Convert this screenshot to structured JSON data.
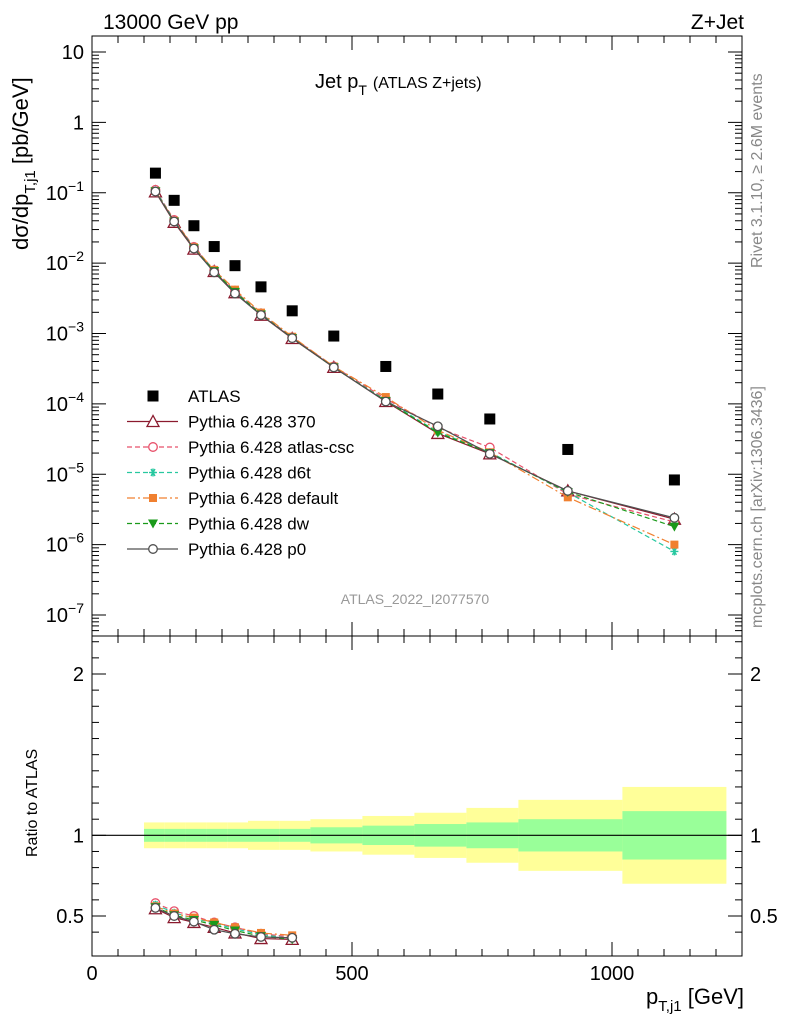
{
  "header": {
    "energy_label": "13000 GeV pp",
    "process_label": "Z+Jet",
    "plot_title_main": "Jet p",
    "plot_title_sub": "T",
    "plot_title_extra": "(ATLAS Z+jets)",
    "analysis_id": "ATLAS_2022_I2077570",
    "rivet_label": "Rivet 3.1.10, ≥ 2.6M events",
    "mcplots_label": "mcplots.cern.ch [arXiv:1306.3436]"
  },
  "axes": {
    "y_main": "dσ/dp",
    "y_main_sub": "T,j1",
    "y_main_unit": " [pb/GeV]",
    "y_ratio": "Ratio to ATLAS",
    "x_main": "p",
    "x_sub": "T,j1",
    "x_unit": " [GeV]"
  },
  "colors": {
    "ATLAS": "#000000",
    "370": "#8b1a2e",
    "atlas-csc": "#e8506a",
    "d6t": "#28c8a0",
    "default": "#f08030",
    "dw": "#1a9a1a",
    "p0": "#505050",
    "band_inner": "#99ff99",
    "band_outer": "#ffff99"
  },
  "chart_data": {
    "type": "line",
    "x_scale": "linear",
    "y_scale": "log",
    "xlim": [
      0,
      1250
    ],
    "ylim": [
      5e-08,
      20
    ],
    "ratio_ylim": [
      0.35,
      2.3
    ],
    "x_ticks": [
      "0",
      "500",
      "1000"
    ],
    "y_ticks": [
      "10^-7",
      "10^-6",
      "10^-5",
      "10^-4",
      "10^-3",
      "10^-2",
      "10^-1",
      "1",
      "10"
    ],
    "ratio_ticks": [
      "0.5",
      "1",
      "2"
    ],
    "legend_position": "middle-left",
    "x": [
      122,
      158,
      196,
      235,
      275,
      325,
      385,
      465,
      565,
      665,
      765,
      915,
      1120
    ],
    "bin_edges": [
      100,
      140,
      180,
      220,
      260,
      300,
      360,
      420,
      520,
      620,
      720,
      820,
      1020,
      1220
    ],
    "series": [
      {
        "name": "ATLAS",
        "marker": "square",
        "values": [
          0.19,
          0.078,
          0.034,
          0.0172,
          0.0092,
          0.0046,
          0.0021,
          0.00092,
          0.00034,
          0.000138,
          6.1e-05,
          2.25e-05,
          8.3e-06
        ]
      },
      {
        "name": "Pythia 6.428 370",
        "key": "370",
        "marker": "triangle",
        "dash": "",
        "values": [
          0.103,
          0.038,
          0.0158,
          0.0076,
          0.0038,
          0.00182,
          0.00085,
          0.00033,
          0.000108,
          3.8e-05,
          1.95e-05,
          5.8e-06,
          2.3e-06
        ]
      },
      {
        "name": "Pythia 6.428 atlas-csc",
        "key": "atlas-csc",
        "marker": "circle-open",
        "dash": "5,3",
        "values": [
          0.11,
          0.041,
          0.017,
          0.0079,
          0.004,
          0.00192,
          0.00088,
          0.00034,
          0.000118,
          4.6e-05,
          2.4e-05,
          5.2e-06,
          2.1e-06
        ]
      },
      {
        "name": "Pythia 6.428 d6t",
        "key": "d6t",
        "marker": "star",
        "dash": "5,3",
        "values": [
          0.108,
          0.04,
          0.0164,
          0.0078,
          0.0039,
          0.00188,
          0.00086,
          0.00033,
          0.000112,
          4e-05,
          2.05e-05,
          5.5e-06,
          8e-07
        ]
      },
      {
        "name": "Pythia 6.428 default",
        "key": "default",
        "marker": "square-small",
        "dash": "8,3,2,3",
        "values": [
          0.106,
          0.04,
          0.0168,
          0.008,
          0.0042,
          0.00198,
          0.0009,
          0.00034,
          0.000125,
          4.2e-05,
          2.05e-05,
          4.7e-06,
          1e-06
        ]
      },
      {
        "name": "Pythia 6.428 dw",
        "key": "dw",
        "marker": "triangle-down",
        "dash": "5,3",
        "values": [
          0.105,
          0.039,
          0.0162,
          0.0077,
          0.0039,
          0.00186,
          0.00086,
          0.00033,
          0.00011,
          3.9e-05,
          2e-05,
          5.6e-06,
          1.8e-06
        ]
      },
      {
        "name": "Pythia 6.428 p0",
        "key": "p0",
        "marker": "circle-open",
        "dash": "",
        "values": [
          0.104,
          0.039,
          0.0161,
          0.0074,
          0.0037,
          0.00183,
          0.00086,
          0.00033,
          0.000108,
          4.8e-05,
          1.95e-05,
          5.8e-06,
          2.4e-06
        ]
      }
    ],
    "ratio_bands": [
      {
        "inner": 0.04,
        "outer": 0.08
      },
      {
        "inner": 0.04,
        "outer": 0.08
      },
      {
        "inner": 0.04,
        "outer": 0.08
      },
      {
        "inner": 0.04,
        "outer": 0.08
      },
      {
        "inner": 0.04,
        "outer": 0.08
      },
      {
        "inner": 0.04,
        "outer": 0.09
      },
      {
        "inner": 0.04,
        "outer": 0.09
      },
      {
        "inner": 0.05,
        "outer": 0.1
      },
      {
        "inner": 0.06,
        "outer": 0.12
      },
      {
        "inner": 0.07,
        "outer": 0.14
      },
      {
        "inner": 0.08,
        "outer": 0.17
      },
      {
        "inner": 0.1,
        "outer": 0.22
      },
      {
        "inner": 0.15,
        "outer": 0.3
      }
    ],
    "ratio_series": [
      {
        "key": "370",
        "marker": "triangle",
        "dash": "",
        "values": [
          0.545,
          0.49,
          0.46,
          0.43,
          0.395,
          0.36,
          0.355
        ]
      },
      {
        "key": "atlas-csc",
        "marker": "circle-open",
        "dash": "5,3",
        "values": [
          0.58,
          0.53,
          0.5,
          0.46,
          0.43,
          0.39,
          0.37
        ]
      },
      {
        "key": "d6t",
        "marker": "star",
        "dash": "5,3",
        "values": [
          0.57,
          0.52,
          0.485,
          0.455,
          0.42,
          0.385,
          0.36
        ]
      },
      {
        "key": "default",
        "marker": "square-small",
        "dash": "8,3,2,3",
        "values": [
          0.56,
          0.515,
          0.49,
          0.46,
          0.43,
          0.395,
          0.38
        ]
      },
      {
        "key": "dw",
        "marker": "triangle-down",
        "dash": "5,3",
        "values": [
          0.555,
          0.505,
          0.475,
          0.445,
          0.41,
          0.375,
          0.355
        ]
      },
      {
        "key": "p0",
        "marker": "circle-open",
        "dash": "",
        "values": [
          0.55,
          0.5,
          0.465,
          0.415,
          0.39,
          0.37,
          0.365
        ]
      }
    ]
  }
}
